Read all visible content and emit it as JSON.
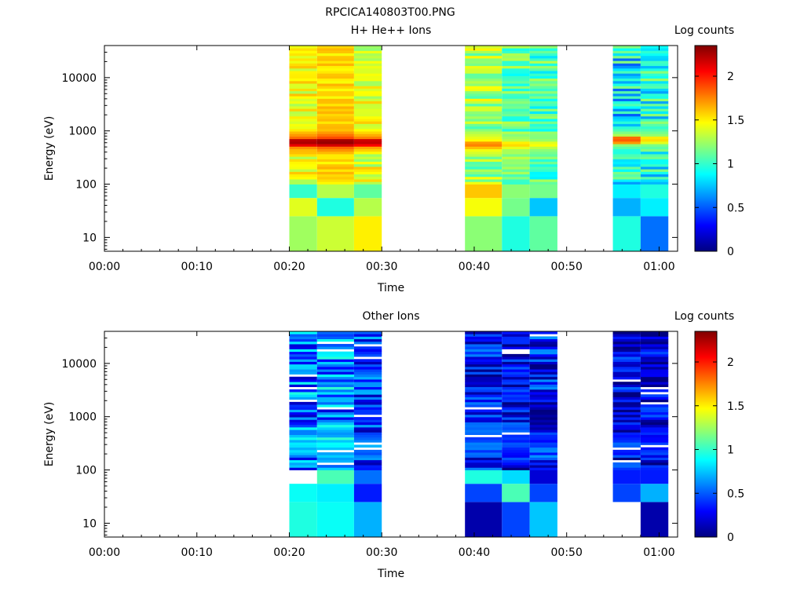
{
  "figure": {
    "title": "RPCICA140803T00.PNG"
  },
  "colorscale": [
    "#000080",
    "#0000ff",
    "#0080ff",
    "#00ffff",
    "#80ff80",
    "#ffff00",
    "#ff8000",
    "#ff0000",
    "#800000"
  ],
  "chart_data": [
    {
      "type": "heatmap",
      "title": "H+ He++ Ions",
      "xlabel": "Time",
      "ylabel": "Energy (eV)",
      "yscale": "log",
      "ylim": [
        5.5,
        40000
      ],
      "xlim_minutes": [
        0,
        62
      ],
      "x_tick_labels": [
        "00:00",
        "00:10",
        "00:20",
        "00:30",
        "00:40",
        "00:50",
        "01:00"
      ],
      "y_tick_labels": [
        "10",
        "100",
        "1000",
        "10000"
      ],
      "colorbar": {
        "label": "Log counts",
        "range": [
          0,
          2.35
        ],
        "tick_labels": [
          "0",
          "0.5",
          "1",
          "1.5",
          "2"
        ]
      },
      "columns": [
        {
          "start": "00:20",
          "end": "00:23"
        },
        {
          "start": "00:23",
          "end": "00:27"
        },
        {
          "start": "00:27",
          "end": "00:30"
        },
        {
          "start": "00:39",
          "end": "00:43"
        },
        {
          "start": "00:43",
          "end": "00:46"
        },
        {
          "start": "00:46",
          "end": "00:49"
        },
        {
          "start": "00:55",
          "end": "00:58"
        },
        {
          "start": "00:58",
          "end": "01:01"
        }
      ],
      "low_energy_bins": [
        {
          "energy_range": [
            5.5,
            25
          ],
          "values": [
            1.25,
            1.35,
            1.5,
            1.2,
            0.95,
            1.1,
            0.95,
            0.55
          ]
        },
        {
          "energy_range": [
            25,
            55
          ],
          "values": [
            1.4,
            0.95,
            1.3,
            1.45,
            1.15,
            0.75,
            0.7,
            0.85
          ]
        },
        {
          "energy_range": [
            55,
            100
          ],
          "values": [
            1.0,
            1.3,
            1.1,
            1.6,
            1.2,
            1.15,
            0.85,
            0.95
          ]
        }
      ],
      "band_energy_range": [
        100,
        40000
      ],
      "band_profiles": [
        {
          "base": 1.45,
          "jitter": 0.18,
          "peak_energy": 630,
          "peak_value": 2.3
        },
        {
          "base": 1.55,
          "jitter": 0.12,
          "peak_energy": 630,
          "peak_value": 2.35
        },
        {
          "base": 1.4,
          "jitter": 0.2,
          "peak_energy": 630,
          "peak_value": 2.25
        },
        {
          "base": 1.25,
          "jitter": 0.25,
          "peak_energy": 560,
          "peak_value": 1.8
        },
        {
          "base": 1.1,
          "jitter": 0.25,
          "peak_energy": 560,
          "peak_value": 1.6
        },
        {
          "base": 1.05,
          "jitter": 0.25,
          "peak_energy": 560,
          "peak_value": 1.5
        },
        {
          "base": 0.85,
          "jitter": 0.35,
          "peak_energy": 700,
          "peak_value": 1.9
        },
        {
          "base": 0.95,
          "jitter": 0.3,
          "peak_energy": 700,
          "peak_value": 1.6
        }
      ]
    },
    {
      "type": "heatmap",
      "title": "Other Ions",
      "xlabel": "Time",
      "ylabel": "Energy (eV)",
      "yscale": "log",
      "ylim": [
        5.5,
        40000
      ],
      "xlim_minutes": [
        0,
        62
      ],
      "x_tick_labels": [
        "00:00",
        "00:10",
        "00:20",
        "00:30",
        "00:40",
        "00:50",
        "01:00"
      ],
      "y_tick_labels": [
        "10",
        "100",
        "1000",
        "10000"
      ],
      "colorbar": {
        "label": "Log counts",
        "range": [
          0,
          2.35
        ],
        "tick_labels": [
          "0",
          "0.5",
          "1",
          "1.5",
          "2"
        ]
      },
      "columns": [
        {
          "start": "00:20",
          "end": "00:23"
        },
        {
          "start": "00:23",
          "end": "00:27"
        },
        {
          "start": "00:27",
          "end": "00:30"
        },
        {
          "start": "00:39",
          "end": "00:43"
        },
        {
          "start": "00:43",
          "end": "00:46"
        },
        {
          "start": "00:46",
          "end": "00:49"
        },
        {
          "start": "00:55",
          "end": "00:58"
        },
        {
          "start": "00:58",
          "end": "01:01"
        }
      ],
      "low_energy_bins": [
        {
          "energy_range": [
            5.5,
            25
          ],
          "values": [
            0.95,
            0.9,
            0.7,
            0.1,
            0.45,
            0.75,
            null,
            0.1
          ]
        },
        {
          "energy_range": [
            25,
            55
          ],
          "values": [
            0.9,
            0.85,
            0.35,
            0.45,
            1.05,
            0.45,
            0.45,
            0.7
          ]
        },
        {
          "energy_range": [
            55,
            100
          ],
          "values": [
            null,
            1.05,
            0.55,
            0.95,
            0.8,
            0.2,
            0.35,
            0.35
          ]
        }
      ],
      "band_energy_range": [
        100,
        40000
      ],
      "band_profiles": [
        {
          "base": 0.55,
          "jitter": 0.4,
          "peak_energy": 300,
          "peak_value": 0.9
        },
        {
          "base": 0.6,
          "jitter": 0.4,
          "peak_energy": 300,
          "peak_value": 0.95
        },
        {
          "base": 0.4,
          "jitter": 0.35,
          "peak_energy": 300,
          "peak_value": 0.8
        },
        {
          "base": 0.3,
          "jitter": 0.3,
          "peak_energy": 300,
          "peak_value": 0.65
        },
        {
          "base": 0.25,
          "jitter": 0.3,
          "peak_energy": 300,
          "peak_value": 0.55
        },
        {
          "base": 0.3,
          "jitter": 0.35,
          "peak_energy": 300,
          "peak_value": 0.5
        },
        {
          "base": 0.25,
          "jitter": 0.3,
          "peak_energy": 300,
          "peak_value": 0.6
        },
        {
          "base": 0.2,
          "jitter": 0.3,
          "peak_energy": 300,
          "peak_value": 0.5
        }
      ]
    }
  ]
}
